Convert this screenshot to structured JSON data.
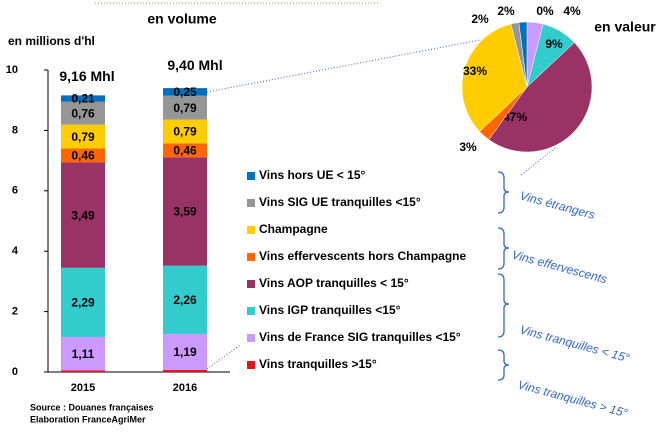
{
  "chart_data": [
    {
      "type": "bar",
      "stacked": true,
      "subtitle": "en volume",
      "y_label": "en millions d'hl",
      "categories": [
        "2015",
        "2016"
      ],
      "total_labels": [
        "9,16 Mhl",
        "9,40 Mhl"
      ],
      "ylim": [
        0,
        10
      ],
      "yticks": [
        0,
        2,
        4,
        6,
        8,
        10
      ],
      "series": [
        {
          "name": "Vins tranquilles >15°",
          "color": "#e8141c",
          "label_color": "#000",
          "values": [
            0.05,
            0.07
          ]
        },
        {
          "name": "Vins de France SIG tranquilles <15°",
          "color": "#cc99ff",
          "label_color": "#fff",
          "values": [
            1.11,
            1.19
          ],
          "value_labels": [
            "1,11",
            "1,19"
          ]
        },
        {
          "name": "Vins IGP tranquilles <15°",
          "color": "#33cccc",
          "label_color": "#fff",
          "values": [
            2.29,
            2.26
          ],
          "value_labels": [
            "2,29",
            "2,26"
          ]
        },
        {
          "name": "Vins AOP tranquilles < 15°",
          "color": "#993366",
          "label_color": "#fff",
          "values": [
            3.49,
            3.59
          ],
          "value_labels": [
            "3,49",
            "3,59"
          ]
        },
        {
          "name": "Vins effervescents hors Champagne",
          "color": "#ff6600",
          "label_color": "#000",
          "values": [
            0.46,
            0.46
          ],
          "value_labels": [
            "0,46",
            "0,46"
          ]
        },
        {
          "name": "Champagne",
          "color": "#ffcc00",
          "label_color": "#000",
          "values": [
            0.79,
            0.79
          ],
          "value_labels": [
            "0,79",
            "0,79"
          ]
        },
        {
          "name": "Vins SIG UE tranquilles <15°",
          "color": "#969696",
          "label_color": "#000",
          "values": [
            0.76,
            0.79
          ],
          "value_labels": [
            "0,76",
            "0,79"
          ]
        },
        {
          "name": "Vins hors UE < 15°",
          "color": "#0070c0",
          "label_color": "#000",
          "values": [
            0.21,
            0.25
          ],
          "value_labels": [
            "0,21",
            "0,25"
          ]
        }
      ],
      "groups": [
        "Vins étrangers",
        "Vins effervescents",
        "Vins tranquilles < 15°",
        "Vins tranquilles > 15°"
      ],
      "source": [
        "Source : Douanes françaises",
        "Elaboration FranceAgriMer"
      ]
    },
    {
      "type": "pie",
      "title": "en valeur",
      "values": [
        0,
        4,
        9,
        47,
        3,
        33,
        2,
        2
      ],
      "value_labels": [
        "0%",
        "4%",
        "9%",
        "47%",
        "3%",
        "33%",
        "2%",
        "2%"
      ],
      "colors": [
        "#e8141c",
        "#cc99ff",
        "#33cccc",
        "#993366",
        "#ff6600",
        "#ffcc00",
        "#969696",
        "#0070c0"
      ]
    }
  ]
}
